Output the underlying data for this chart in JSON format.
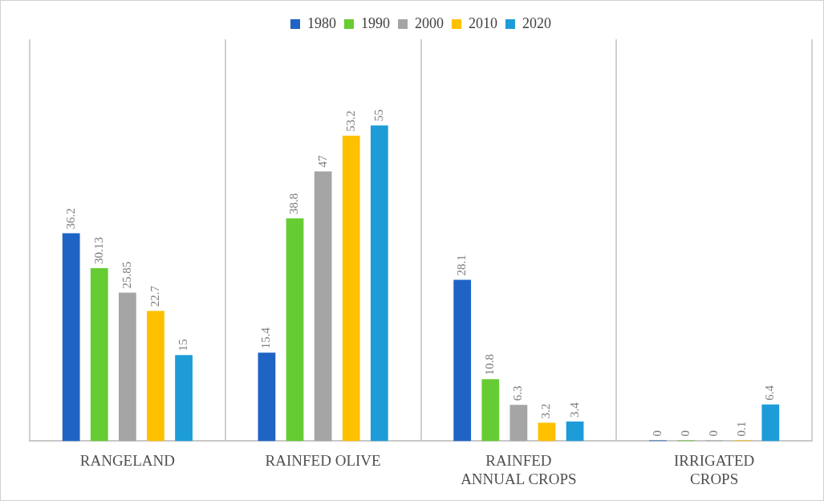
{
  "chart_data": {
    "type": "bar",
    "categories": [
      "RANGELAND",
      "RAINFED OLIVE",
      "RAINFED ANNUAL CROPS",
      "IRRIGATED CROPS"
    ],
    "series": [
      {
        "name": "1980",
        "color": "#1f63c4",
        "values": [
          36.2,
          15.4,
          28.1,
          0
        ]
      },
      {
        "name": "1990",
        "color": "#66cc33",
        "values": [
          30.13,
          38.8,
          10.8,
          0
        ]
      },
      {
        "name": "2000",
        "color": "#a5a5a5",
        "values": [
          25.85,
          47,
          6.3,
          0
        ]
      },
      {
        "name": "2010",
        "color": "#ffc000",
        "values": [
          22.7,
          53.2,
          3.2,
          0.1
        ]
      },
      {
        "name": "2020",
        "color": "#1e9cd8",
        "values": [
          15,
          55,
          3.4,
          6.4
        ]
      }
    ],
    "data_labels": true,
    "grid": "x",
    "legend": "top"
  }
}
